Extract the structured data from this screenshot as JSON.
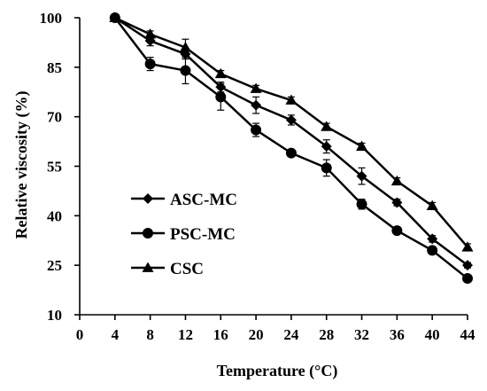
{
  "chart_data": {
    "type": "line",
    "xlabel": "Temperature  (°C)",
    "ylabel": "Relative viscosity  (%)",
    "x": [
      4,
      8,
      12,
      16,
      20,
      24,
      28,
      32,
      36,
      40,
      44
    ],
    "xlim": [
      0,
      44
    ],
    "ylim": [
      10,
      100
    ],
    "x_ticks": [
      0,
      4,
      8,
      12,
      16,
      20,
      24,
      28,
      32,
      36,
      40,
      44
    ],
    "y_ticks": [
      10,
      25,
      40,
      55,
      70,
      85,
      100
    ],
    "grid": false,
    "legend_position": "left-middle",
    "series": [
      {
        "name": "ASC-MC",
        "marker": "diamond",
        "values": [
          100,
          93,
          89,
          79,
          73.5,
          69,
          61,
          52,
          44,
          33,
          25
        ],
        "errors": [
          0,
          1.5,
          1.5,
          1.5,
          2.5,
          1.5,
          2,
          2.5,
          1,
          1,
          0.8
        ]
      },
      {
        "name": "PSC-MC",
        "marker": "circle",
        "values": [
          100,
          86,
          84,
          76,
          66,
          59,
          54.5,
          43.5,
          35.5,
          29.5,
          21
        ],
        "errors": [
          0,
          2,
          4,
          4,
          2,
          1,
          2.5,
          1.5,
          1,
          1,
          0.8
        ]
      },
      {
        "name": "CSC",
        "marker": "triangle",
        "values": [
          100,
          95,
          91,
          83,
          78.5,
          75,
          67,
          61,
          50.5,
          43,
          30.5
        ],
        "errors": [
          0,
          1,
          2.5,
          1,
          1,
          1,
          1,
          1,
          1,
          1,
          1
        ]
      }
    ]
  }
}
